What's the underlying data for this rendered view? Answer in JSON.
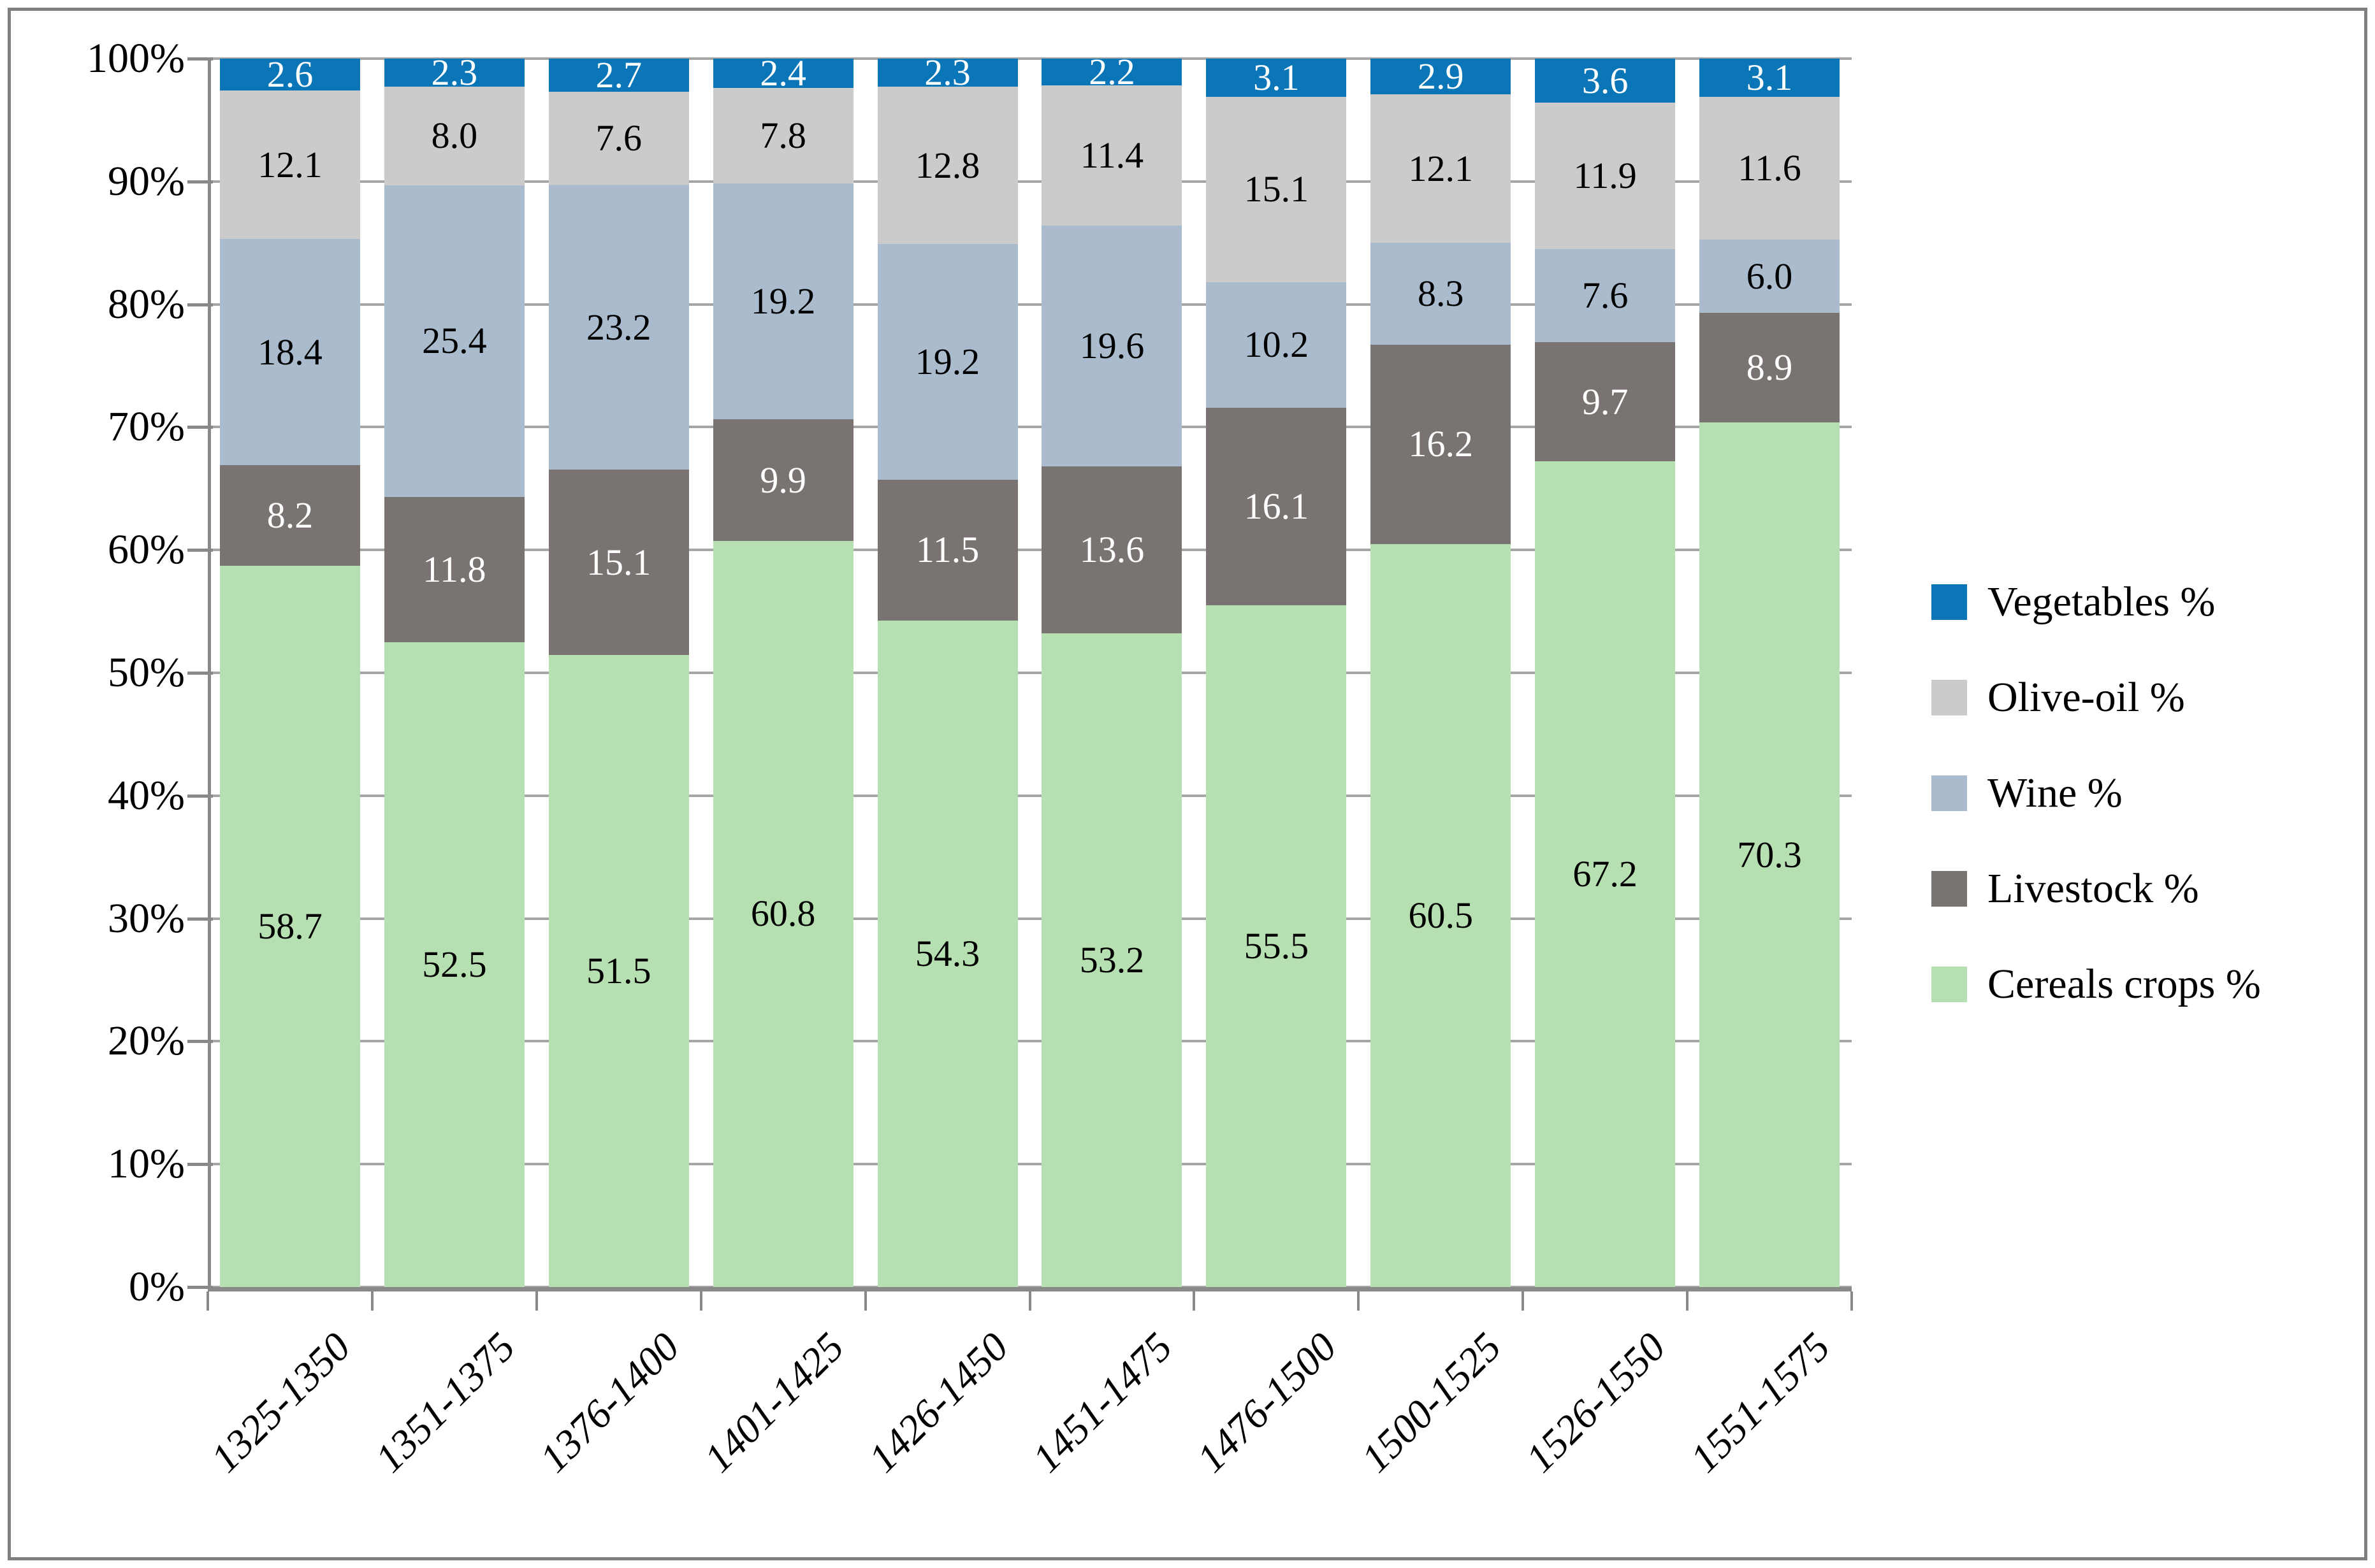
{
  "chart_data": {
    "type": "bar",
    "variant": "100%-stacked-column",
    "title": "",
    "grid": true,
    "categories": [
      "1325-1350",
      "1351-1375",
      "1376-1400",
      "1401-1425",
      "1426-1450",
      "1451-1475",
      "1476-1500",
      "1500-1525",
      "1526-1550",
      "1551-1575"
    ],
    "series": [
      {
        "name": "Vegetables %",
        "color": "#0b76b7",
        "label_color": "#ffffff",
        "values": [
          2.6,
          2.3,
          2.7,
          2.4,
          2.3,
          2.2,
          3.1,
          2.9,
          3.6,
          3.1
        ],
        "labels": [
          "2.6",
          "2.3",
          "2.7",
          "2.4",
          "2.3",
          "2.2",
          "3.1",
          "2.9",
          "3.6",
          "3.1"
        ]
      },
      {
        "name": "Olive-oil %",
        "color": "#cbcbcb",
        "label_color": "#000000",
        "values": [
          12.1,
          8.0,
          7.6,
          7.8,
          12.8,
          11.4,
          15.1,
          12.1,
          11.9,
          11.6
        ],
        "labels": [
          "12.1",
          "8.0",
          "7.6",
          "7.8",
          "12.8",
          "11.4",
          "15.1",
          "12.1",
          "11.9",
          "11.6"
        ]
      },
      {
        "name": "Wine %",
        "color": "#a9bbcd",
        "label_color": "#000000",
        "values": [
          18.4,
          25.4,
          23.2,
          19.2,
          19.2,
          19.6,
          10.2,
          8.3,
          7.6,
          6.0
        ],
        "labels": [
          "18.4",
          "25.4",
          "23.2",
          "19.2",
          "19.2",
          "19.6",
          "10.2",
          "8.3",
          "7.6",
          "6.0"
        ]
      },
      {
        "name": "Livestock %",
        "color": "#797372",
        "label_color": "#ffffff",
        "values": [
          8.2,
          11.8,
          15.1,
          9.9,
          11.5,
          13.6,
          16.1,
          16.2,
          9.7,
          8.9
        ],
        "labels": [
          "8.2",
          "11.8",
          "15.1",
          "9.9",
          "11.5",
          "13.6",
          "16.1",
          "16.2",
          "9.7",
          "8.9"
        ]
      },
      {
        "name": "Cereals crops %",
        "color": "#b6e0b2",
        "label_color": "#000000",
        "values": [
          58.7,
          52.5,
          51.5,
          60.8,
          54.3,
          53.2,
          55.5,
          60.5,
          67.2,
          70.3
        ],
        "labels": [
          "58.7",
          "52.5",
          "51.5",
          "60.8",
          "54.3",
          "53.2",
          "55.5",
          "60.5",
          "67.2",
          "70.3"
        ]
      }
    ],
    "stack_order_bottom_to_top": [
      "Cereals crops %",
      "Livestock %",
      "Wine %",
      "Olive-oil %",
      "Vegetables %"
    ],
    "y_axis": {
      "min": 0,
      "max": 100,
      "step": 10,
      "format": "percent",
      "tick_labels": [
        "0%",
        "10%",
        "20%",
        "30%",
        "40%",
        "50%",
        "60%",
        "70%",
        "80%",
        "90%",
        "100%"
      ]
    },
    "legend": {
      "position": "right",
      "entries": [
        "Vegetables %",
        "Olive-oil %",
        "Wine %",
        "Livestock %",
        "Cereals crops %"
      ]
    },
    "style_colors": {
      "gridline": "#a6a6a6",
      "axis": "#898989",
      "outer_border": "#7f7f7f",
      "background": "#ffffff"
    }
  }
}
